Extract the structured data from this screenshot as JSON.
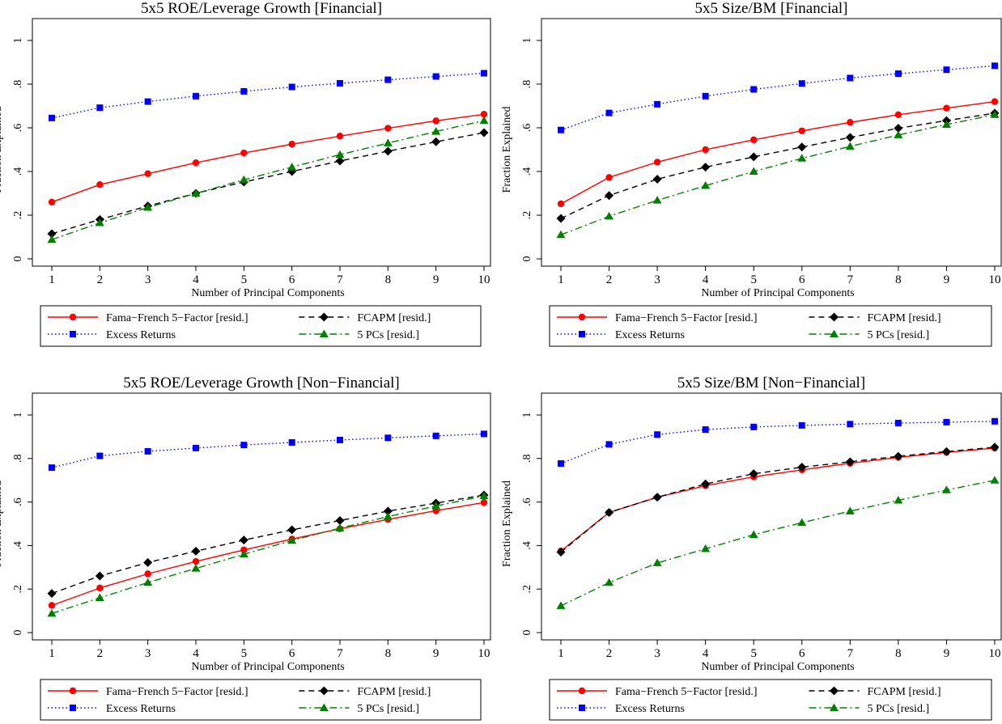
{
  "legend_labels": {
    "ff5": "Fama−French 5−Factor [resid.]",
    "fcapm": "FCAPM [resid.]",
    "excess": "Excess Returns",
    "pcs": "5 PCs [resid.]"
  },
  "series_colors": {
    "ff5": "#ff0000",
    "fcapm": "#000000",
    "excess": "#0000ff",
    "pcs": "#008000"
  },
  "chart_data": [
    {
      "type": "line",
      "title": "5x5 ROE/Leverage Growth [Financial]",
      "xlabel": "Number of Principal Components",
      "ylabel": "Fraction Explained",
      "x": [
        1,
        2,
        3,
        4,
        5,
        6,
        7,
        8,
        9,
        10
      ],
      "xlim": [
        1,
        10
      ],
      "ylim": [
        0,
        1
      ],
      "yticks": [
        "0",
        ".2",
        ".4",
        ".6",
        ".8",
        "1"
      ],
      "legend_position": "bottom",
      "series": [
        {
          "key": "ff5",
          "name": "Fama−French 5−Factor [resid.]",
          "values": [
            0.26,
            0.34,
            0.39,
            0.44,
            0.485,
            0.525,
            0.562,
            0.598,
            0.632,
            0.662
          ]
        },
        {
          "key": "fcapm",
          "name": "FCAPM [resid.]",
          "values": [
            0.115,
            0.18,
            0.242,
            0.3,
            0.352,
            0.4,
            0.448,
            0.493,
            0.536,
            0.578
          ]
        },
        {
          "key": "excess",
          "name": "Excess Returns",
          "values": [
            0.645,
            0.692,
            0.72,
            0.745,
            0.767,
            0.787,
            0.804,
            0.82,
            0.835,
            0.85
          ]
        },
        {
          "key": "pcs",
          "name": "5 PCs [resid.]",
          "values": [
            0.088,
            0.165,
            0.235,
            0.3,
            0.362,
            0.42,
            0.477,
            0.53,
            0.583,
            0.633
          ]
        }
      ]
    },
    {
      "type": "line",
      "title": "5x5 Size/BM [Financial]",
      "xlabel": "Number of Principal Components",
      "ylabel": "Fraction Explained",
      "x": [
        1,
        2,
        3,
        4,
        5,
        6,
        7,
        8,
        9,
        10
      ],
      "xlim": [
        1,
        10
      ],
      "ylim": [
        0,
        1
      ],
      "yticks": [
        "0",
        ".2",
        ".4",
        ".6",
        ".8",
        "1"
      ],
      "legend_position": "bottom",
      "series": [
        {
          "key": "ff5",
          "name": "Fama−French 5−Factor [resid.]",
          "values": [
            0.252,
            0.373,
            0.443,
            0.5,
            0.545,
            0.586,
            0.625,
            0.66,
            0.69,
            0.72
          ]
        },
        {
          "key": "fcapm",
          "name": "FCAPM [resid.]",
          "values": [
            0.185,
            0.29,
            0.365,
            0.42,
            0.467,
            0.512,
            0.556,
            0.598,
            0.633,
            0.667
          ]
        },
        {
          "key": "excess",
          "name": "Excess Returns",
          "values": [
            0.59,
            0.668,
            0.708,
            0.745,
            0.776,
            0.803,
            0.828,
            0.848,
            0.866,
            0.884
          ]
        },
        {
          "key": "pcs",
          "name": "5 PCs [resid.]",
          "values": [
            0.11,
            0.195,
            0.268,
            0.335,
            0.4,
            0.46,
            0.515,
            0.567,
            0.615,
            0.66
          ]
        }
      ]
    },
    {
      "type": "line",
      "title": "5x5 ROE/Leverage Growth [Non−Financial]",
      "xlabel": "Number of Principal Components",
      "ylabel": "Fraction Explained",
      "x": [
        1,
        2,
        3,
        4,
        5,
        6,
        7,
        8,
        9,
        10
      ],
      "xlim": [
        1,
        10
      ],
      "ylim": [
        0,
        1
      ],
      "yticks": [
        "0",
        ".2",
        ".4",
        ".6",
        ".8",
        "1"
      ],
      "legend_position": "bottom",
      "series": [
        {
          "key": "ff5",
          "name": "Fama−French 5−Factor [resid.]",
          "values": [
            0.125,
            0.205,
            0.27,
            0.327,
            0.38,
            0.43,
            0.477,
            0.52,
            0.56,
            0.598
          ]
        },
        {
          "key": "fcapm",
          "name": "FCAPM [resid.]",
          "values": [
            0.18,
            0.26,
            0.322,
            0.374,
            0.425,
            0.472,
            0.515,
            0.558,
            0.595,
            0.632
          ]
        },
        {
          "key": "excess",
          "name": "Excess Returns",
          "values": [
            0.758,
            0.812,
            0.833,
            0.848,
            0.862,
            0.874,
            0.885,
            0.895,
            0.904,
            0.913
          ]
        },
        {
          "key": "pcs",
          "name": "5 PCs [resid.]",
          "values": [
            0.088,
            0.16,
            0.23,
            0.295,
            0.36,
            0.423,
            0.48,
            0.533,
            0.582,
            0.628
          ]
        }
      ]
    },
    {
      "type": "line",
      "title": "5x5 Size/BM [Non−Financial]",
      "xlabel": "Number of Principal Components",
      "ylabel": "Fraction Explained",
      "x": [
        1,
        2,
        3,
        4,
        5,
        6,
        7,
        8,
        9,
        10
      ],
      "xlim": [
        1,
        10
      ],
      "ylim": [
        0,
        1
      ],
      "yticks": [
        "0",
        ".2",
        ".4",
        ".6",
        ".8",
        "1"
      ],
      "legend_position": "bottom",
      "series": [
        {
          "key": "ff5",
          "name": "Fama−French 5−Factor [resid.]",
          "values": [
            0.375,
            0.552,
            0.622,
            0.675,
            0.716,
            0.748,
            0.778,
            0.805,
            0.828,
            0.848
          ]
        },
        {
          "key": "fcapm",
          "name": "FCAPM [resid.]",
          "values": [
            0.37,
            0.552,
            0.622,
            0.683,
            0.73,
            0.76,
            0.785,
            0.81,
            0.832,
            0.852
          ]
        },
        {
          "key": "excess",
          "name": "Excess Returns",
          "values": [
            0.777,
            0.865,
            0.91,
            0.933,
            0.945,
            0.952,
            0.958,
            0.963,
            0.967,
            0.971
          ]
        },
        {
          "key": "pcs",
          "name": "5 PCs [resid.]",
          "values": [
            0.123,
            0.23,
            0.32,
            0.385,
            0.45,
            0.505,
            0.558,
            0.608,
            0.655,
            0.7
          ]
        }
      ]
    }
  ]
}
